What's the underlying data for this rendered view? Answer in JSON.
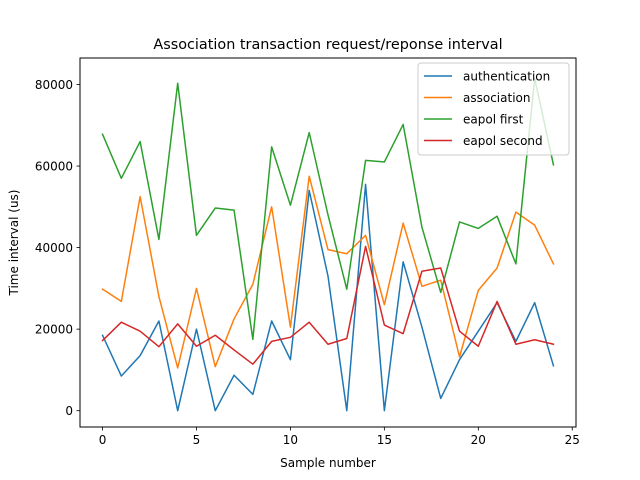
{
  "chart_data": {
    "type": "line",
    "title": "Association transaction request/reponse interval",
    "xlabel": "Sample number",
    "ylabel": "Time interval (us)",
    "xlim": [
      -1.2,
      25.2
    ],
    "ylim": [
      -4000,
      86500
    ],
    "xticks": [
      0,
      5,
      10,
      15,
      20,
      25
    ],
    "yticks": [
      0,
      20000,
      40000,
      60000,
      80000
    ],
    "legend_position": "top-right",
    "grid": false,
    "x": [
      0,
      1,
      2,
      3,
      4,
      5,
      6,
      7,
      8,
      9,
      10,
      11,
      12,
      13,
      14,
      15,
      16,
      17,
      18,
      19,
      20,
      21,
      22,
      23,
      24
    ],
    "series": [
      {
        "name": "authentication",
        "color": "#1f77b4",
        "values": [
          18500,
          8500,
          13500,
          22000,
          0,
          20000,
          0,
          8700,
          4000,
          22000,
          12500,
          54000,
          33000,
          0,
          55500,
          0,
          36500,
          20500,
          3000,
          12500,
          19500,
          26500,
          17000,
          26500,
          11000
        ]
      },
      {
        "name": "association",
        "color": "#ff7f0e",
        "values": [
          29800,
          26800,
          52500,
          28000,
          10500,
          30000,
          10800,
          22500,
          31000,
          50000,
          20500,
          57500,
          39500,
          38500,
          43000,
          26000,
          46000,
          30500,
          32000,
          13200,
          29500,
          35000,
          48700,
          45500,
          36000
        ]
      },
      {
        "name": "eapol first",
        "color": "#2ca02c",
        "values": [
          67800,
          57000,
          66000,
          42000,
          80300,
          43000,
          49700,
          49200,
          17500,
          64700,
          50400,
          68200,
          48000,
          29800,
          61400,
          61000,
          70200,
          45000,
          29000,
          46300,
          44700,
          47700,
          36000,
          81500,
          60300
        ]
      },
      {
        "name": "eapol second",
        "color": "#d62728",
        "values": [
          17200,
          21700,
          19500,
          15700,
          21300,
          15800,
          18500,
          14900,
          11400,
          17000,
          18000,
          21700,
          16300,
          17700,
          40300,
          21000,
          18900,
          34200,
          35000,
          19500,
          15800,
          26800,
          16300,
          17400,
          16300
        ]
      }
    ]
  }
}
